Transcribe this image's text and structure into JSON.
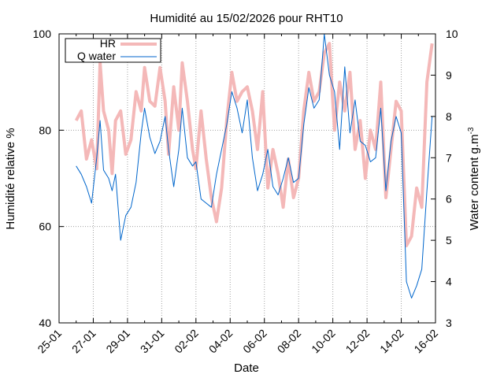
{
  "chart_data": {
    "type": "line",
    "title": "Humidité au 15/02/2026 pour RHT10",
    "xlabel": "Date",
    "ylabel_left": "Humidité relative %",
    "ylabel_right": "Water content g.m",
    "ylabel_right_exponent": "-3",
    "x_tick_labels": [
      "25-01",
      "27-01",
      "29-01",
      "31-01",
      "02-02",
      "04-02",
      "06-02",
      "08-02",
      "10-02",
      "12-02",
      "14-02",
      "16-02"
    ],
    "y_left_ticks": [
      "40",
      "60",
      "80",
      "100"
    ],
    "y_right_ticks": [
      "3",
      "4",
      "5",
      "6",
      "7",
      "8",
      "9",
      "10"
    ],
    "xlim_days_from_25_01": [
      0,
      22
    ],
    "ylim_left": [
      40,
      100
    ],
    "ylim_right": [
      3,
      10
    ],
    "grid": true,
    "legend_position": "top-left",
    "series": [
      {
        "name": "HR",
        "axis": "left",
        "color": "#f4b8b8",
        "x": [
          1.0,
          1.3,
          1.6,
          1.9,
          2.2,
          2.4,
          2.6,
          2.9,
          3.1,
          3.3,
          3.6,
          3.9,
          4.2,
          4.5,
          4.8,
          5.0,
          5.3,
          5.6,
          5.9,
          6.2,
          6.4,
          6.7,
          7.0,
          7.2,
          7.5,
          7.8,
          8.0,
          8.3,
          8.6,
          8.9,
          9.2,
          9.5,
          9.8,
          10.1,
          10.4,
          10.7,
          11.0,
          11.3,
          11.6,
          11.9,
          12.2,
          12.5,
          12.8,
          13.1,
          13.4,
          13.7,
          14.0,
          14.3,
          14.6,
          14.9,
          15.2,
          15.5,
          15.8,
          16.1,
          16.4,
          16.7,
          17.0,
          17.3,
          17.6,
          17.9,
          18.2,
          18.5,
          18.8,
          19.1,
          19.4,
          19.7,
          20.0,
          20.3,
          20.6,
          20.9,
          21.2,
          21.5,
          21.8
        ],
        "y": [
          82,
          84,
          74,
          78,
          72,
          94,
          84,
          80,
          71,
          82,
          84,
          75,
          78,
          88,
          84,
          93,
          86,
          85,
          93,
          86,
          75,
          89,
          80,
          94,
          86,
          76,
          72,
          84,
          74,
          66,
          61,
          68,
          82,
          92,
          86,
          88,
          89,
          84,
          76,
          88,
          68,
          76,
          71,
          64,
          74,
          66,
          70,
          84,
          92,
          86,
          88,
          96,
          98,
          80,
          90,
          84,
          92,
          76,
          82,
          70,
          80,
          76,
          90,
          66,
          76,
          86,
          84,
          56,
          58,
          68,
          64,
          90,
          98
        ]
      },
      {
        "name": "Q water",
        "axis": "right",
        "color": "#0066cc",
        "x": [
          1.0,
          1.3,
          1.6,
          1.9,
          2.2,
          2.4,
          2.6,
          2.9,
          3.1,
          3.3,
          3.6,
          3.9,
          4.2,
          4.5,
          4.8,
          5.0,
          5.3,
          5.6,
          5.9,
          6.2,
          6.4,
          6.7,
          7.0,
          7.2,
          7.5,
          7.8,
          8.0,
          8.3,
          8.6,
          8.9,
          9.2,
          9.5,
          9.8,
          10.1,
          10.4,
          10.7,
          11.0,
          11.3,
          11.6,
          11.9,
          12.2,
          12.5,
          12.8,
          13.1,
          13.4,
          13.7,
          14.0,
          14.3,
          14.6,
          14.9,
          15.2,
          15.5,
          15.8,
          16.1,
          16.4,
          16.7,
          17.0,
          17.3,
          17.6,
          17.9,
          18.2,
          18.5,
          18.8,
          19.1,
          19.4,
          19.7,
          20.0,
          20.3,
          20.6,
          20.9,
          21.2,
          21.5,
          21.8
        ],
        "y": [
          6.8,
          6.6,
          6.3,
          5.9,
          7.0,
          7.9,
          6.7,
          6.5,
          6.2,
          6.6,
          5.0,
          5.6,
          5.8,
          6.4,
          7.6,
          8.2,
          7.5,
          7.1,
          7.4,
          8.0,
          7.2,
          6.3,
          7.2,
          8.2,
          7.0,
          6.8,
          6.9,
          6.0,
          5.9,
          5.8,
          6.6,
          7.2,
          7.8,
          8.6,
          8.2,
          7.6,
          8.4,
          7.0,
          6.2,
          6.6,
          7.2,
          6.3,
          6.1,
          6.5,
          7.0,
          6.4,
          6.5,
          7.8,
          8.7,
          8.2,
          8.4,
          10.0,
          9.0,
          8.6,
          7.2,
          9.2,
          7.6,
          8.4,
          7.4,
          7.3,
          6.9,
          7.0,
          8.2,
          6.2,
          7.4,
          8.0,
          7.6,
          4.0,
          3.6,
          3.9,
          4.3,
          6.2,
          8.0
        ]
      }
    ]
  }
}
